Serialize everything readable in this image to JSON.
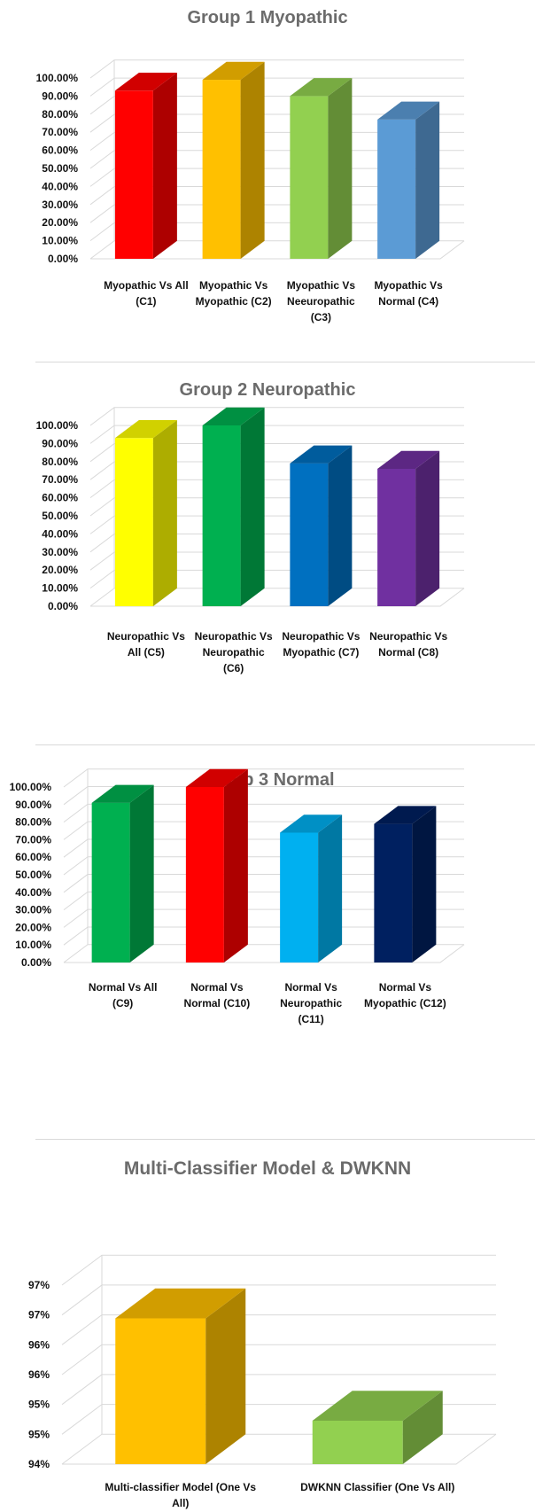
{
  "chart_data": [
    {
      "type": "bar",
      "title": "Group 1 Myopathic",
      "categories": [
        "Myopathic Vs All (C1)",
        "Myopathic Vs Myopathic (C2)",
        "Myopathic Vs Neeuropathic (C3)",
        "Myopathic Vs Normal (C4)"
      ],
      "category_lines": [
        [
          "Myopathic Vs All",
          "(C1)"
        ],
        [
          "Myopathic Vs",
          "Myopathic (C2)"
        ],
        [
          "Myopathic Vs",
          "Neeuropathic",
          "(C3)"
        ],
        [
          "Myopathic Vs",
          "Normal (C4)"
        ]
      ],
      "values": [
        93,
        99,
        90,
        77
      ],
      "colors": [
        "#ff0000",
        "#ffc000",
        "#92d050",
        "#5b9bd5"
      ],
      "ylim": [
        0,
        100
      ],
      "yticks": [
        "0.00%",
        "10.00%",
        "20.00%",
        "30.00%",
        "40.00%",
        "50.00%",
        "60.00%",
        "70.00%",
        "80.00%",
        "90.00%",
        "100.00%"
      ],
      "grid": true
    },
    {
      "type": "bar",
      "title": "Group 2 Neuropathic",
      "categories": [
        "Neuropathic Vs All (C5)",
        "Neuropathic Vs Neuropathic (C6)",
        "Neuropathic Vs Myopathic (C7)",
        "Neuropathic Vs Normal (C8)"
      ],
      "category_lines": [
        [
          "Neuropathic Vs",
          "All (C5)"
        ],
        [
          "Neuropathic Vs",
          "Neuropathic",
          "(C6)"
        ],
        [
          "Neuropathic Vs",
          "Myopathic (C7)"
        ],
        [
          "Neuropathic Vs",
          "Normal (C8)"
        ]
      ],
      "values": [
        93,
        100,
        79,
        76
      ],
      "colors": [
        "#ffff00",
        "#00b050",
        "#0070c0",
        "#7030a0"
      ],
      "ylim": [
        0,
        100
      ],
      "yticks": [
        "0.00%",
        "10.00%",
        "20.00%",
        "30.00%",
        "40.00%",
        "50.00%",
        "60.00%",
        "70.00%",
        "80.00%",
        "90.00%",
        "100.00%"
      ],
      "grid": true
    },
    {
      "type": "bar",
      "title": "Group 3 Normal",
      "categories": [
        "Normal Vs All (C9)",
        "Normal Vs Normal (C10)",
        "Normal Vs Neuropathic (C11)",
        "Normal Vs Myopathic (C12)"
      ],
      "category_lines": [
        [
          "Normal Vs All",
          "(C9)"
        ],
        [
          "Normal Vs",
          "Normal (C10)"
        ],
        [
          "Normal Vs",
          "Neuropathic",
          "(C11)"
        ],
        [
          "Normal Vs",
          "Myopathic (C12)"
        ]
      ],
      "values": [
        91,
        100,
        74,
        79
      ],
      "colors": [
        "#00b050",
        "#ff0000",
        "#00b0f0",
        "#002060"
      ],
      "ylim": [
        0,
        100
      ],
      "yticks": [
        "0.00%",
        "10.00%",
        "20.00%",
        "30.00%",
        "40.00%",
        "50.00%",
        "60.00%",
        "70.00%",
        "80.00%",
        "90.00%",
        "100.00%"
      ],
      "grid": true
    },
    {
      "type": "bar",
      "title": "Multi-Classifier Model & DWKNN",
      "categories": [
        "Multi-classifier Model (One Vs All)",
        "DWKNN Classifier (One Vs All)"
      ],
      "category_lines": [
        [
          "Multi-classifier Model (One Vs",
          "All)"
        ],
        [
          "DWKNN Classifier (One Vs All)"
        ]
      ],
      "values": [
        96.85,
        94.85
      ],
      "colors": [
        "#ffc000",
        "#92d050"
      ],
      "ylim": [
        94,
        97.5
      ],
      "yticks": [
        "94%",
        "95%",
        "95%",
        "96%",
        "96%",
        "97%",
        "97%"
      ],
      "grid": true
    }
  ]
}
